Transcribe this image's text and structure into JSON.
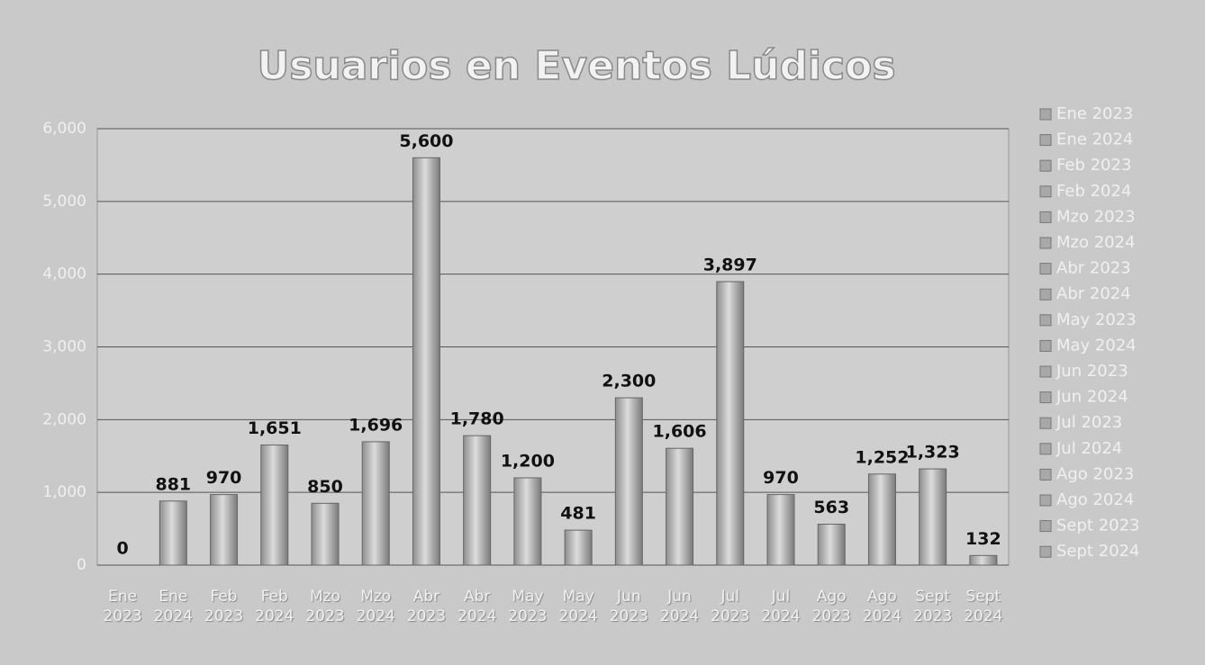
{
  "chart_data": {
    "type": "bar",
    "title": "Usuarios en Eventos Lúdicos",
    "categories": [
      "Ene 2023",
      "Ene 2024",
      "Feb 2023",
      "Feb 2024",
      "Mzo 2023",
      "Mzo 2024",
      "Abr 2023",
      "Abr 2024",
      "May 2023",
      "May 2024",
      "Jun 2023",
      "Jun 2024",
      "Jul 2023",
      "Jul 2024",
      "Ago 2023",
      "Ago 2024",
      "Sept 2023",
      "Sept 2024"
    ],
    "values": [
      0,
      881,
      970,
      1651,
      850,
      1696,
      5600,
      1780,
      1200,
      481,
      2300,
      1606,
      3897,
      970,
      563,
      1252,
      1323,
      132
    ],
    "value_labels": [
      "0",
      "881",
      "970",
      "1,651",
      "850",
      "1,696",
      "5,600",
      "1,780",
      "1,200",
      "481",
      "2,300",
      "1,606",
      "3,897",
      "970",
      "563",
      "1,252",
      "1,323",
      "132"
    ],
    "color": "#a8a8a8",
    "ylim": [
      0,
      6000
    ],
    "yticks": [
      0,
      {
        "value": 1000,
        "label": "1,000"
      },
      {
        "value": 2000,
        "label": "2,000"
      },
      {
        "value": 3000,
        "label": "3,000"
      },
      {
        "value": 4000,
        "label": "4,000"
      },
      {
        "value": 5000,
        "label": "5,000"
      },
      {
        "value": 6000,
        "label": "6,000"
      }
    ],
    "grid": true,
    "legend": "right"
  }
}
